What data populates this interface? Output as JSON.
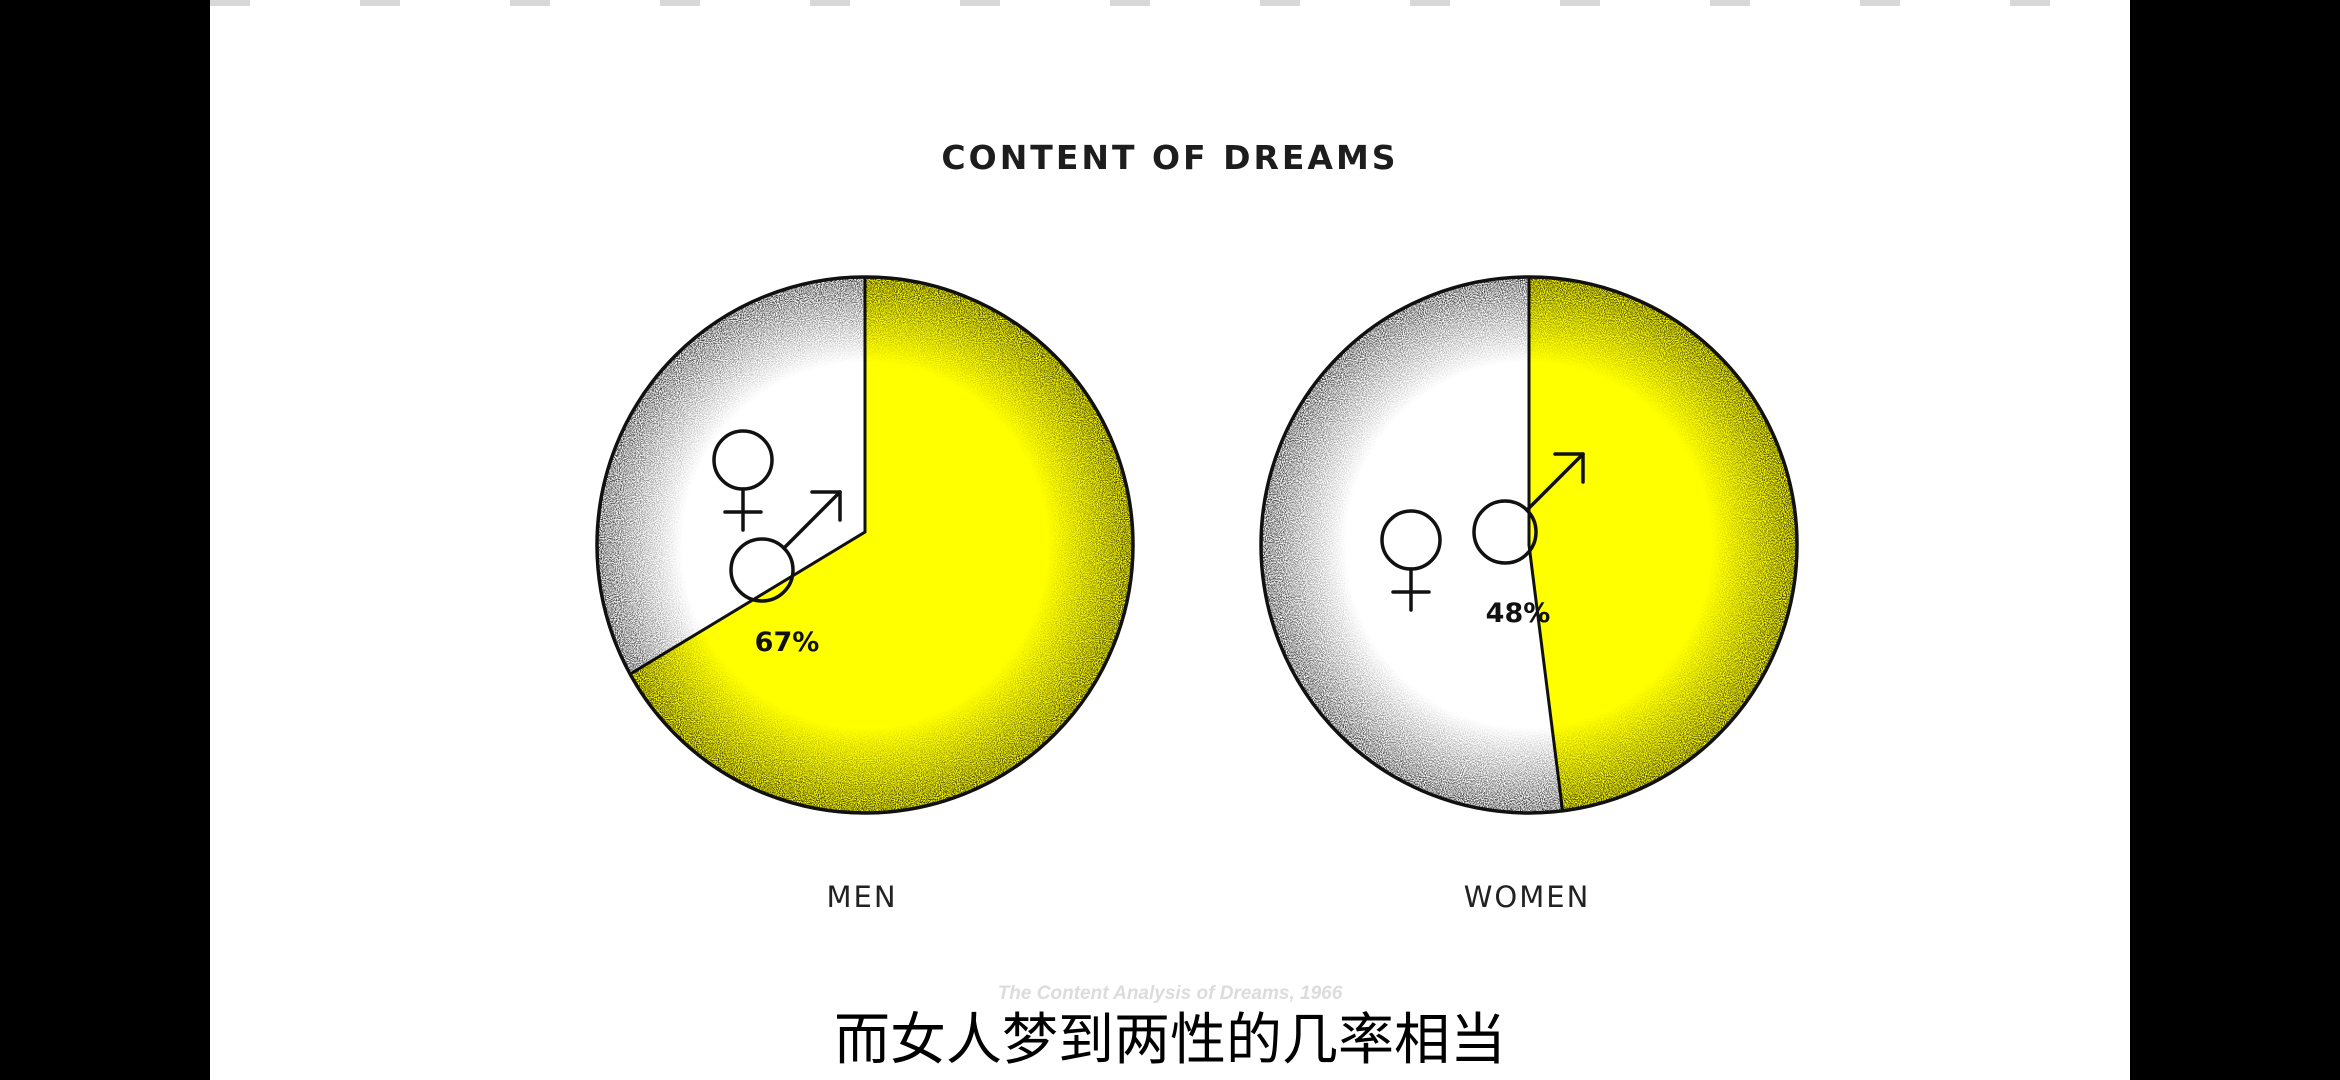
{
  "chart_data": {
    "type": "pie",
    "title": "CONTENT OF DREAMS",
    "source": "The Content Analysis of Dreams, 1966",
    "charts": [
      {
        "label": "MEN",
        "slices": [
          {
            "name": "♂",
            "value": 67,
            "label": "67%",
            "color": "#ffff00"
          },
          {
            "name": "♀",
            "value": 33,
            "label": "",
            "color": "#ffffff"
          }
        ]
      },
      {
        "label": "WOMEN",
        "slices": [
          {
            "name": "♂",
            "value": 48,
            "label": "48%",
            "color": "#ffff00"
          },
          {
            "name": "♀",
            "value": 52,
            "label": "",
            "color": "#ffffff"
          }
        ]
      }
    ]
  },
  "subtitle": "而女人梦到两性的几率相当"
}
